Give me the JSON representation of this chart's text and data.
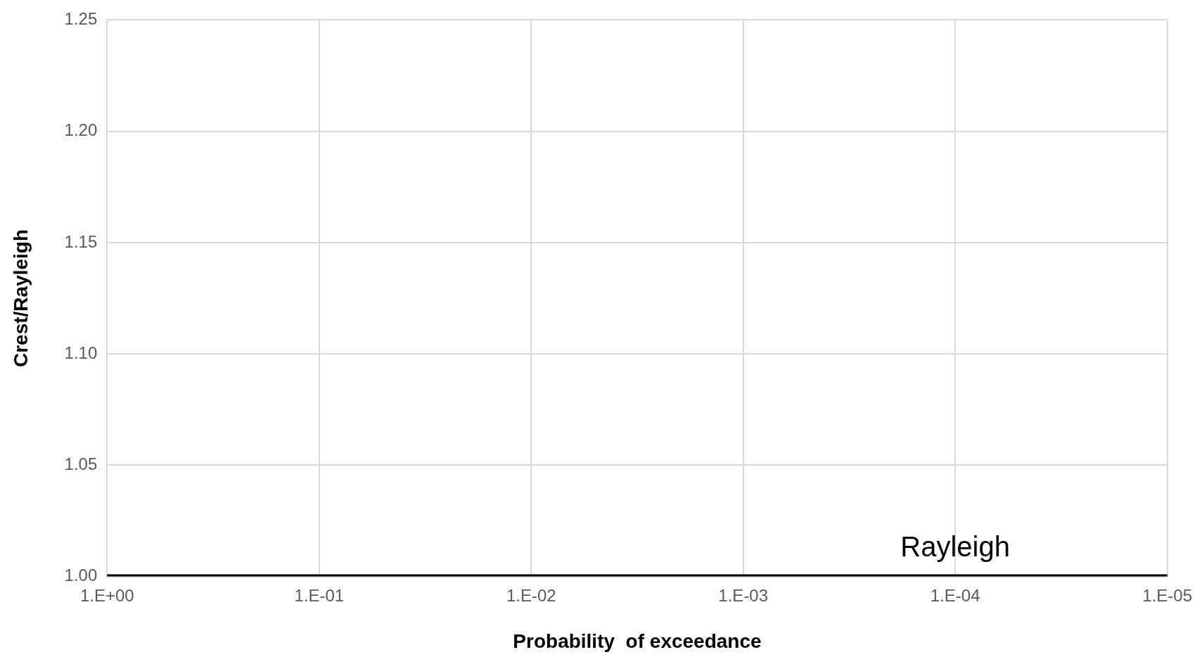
{
  "chart_data": {
    "type": "line",
    "xlabel": "Probability  of exceedance",
    "ylabel": "Crest/Rayleigh",
    "categories": [
      "1.E+00",
      "1.E-01",
      "1.E-02",
      "1.E-03",
      "1.E-04",
      "1.E-05"
    ],
    "series": [
      {
        "name": "Rayleigh",
        "color": "#000000",
        "values": [
          1,
          1,
          1,
          1,
          1,
          1
        ]
      }
    ],
    "ylim": [
      1,
      1.25
    ],
    "yticks": [
      {
        "value": 1,
        "label": "1.00"
      },
      {
        "value": 1.05,
        "label": "1.05"
      },
      {
        "value": 1.1,
        "label": "1.10"
      },
      {
        "value": 1.15,
        "label": "1.15"
      },
      {
        "value": 1.2,
        "label": "1.20"
      },
      {
        "value": 1.25,
        "label": "1.25"
      }
    ],
    "grid": true,
    "legend": false,
    "marker": "none",
    "line_style": "solid"
  }
}
